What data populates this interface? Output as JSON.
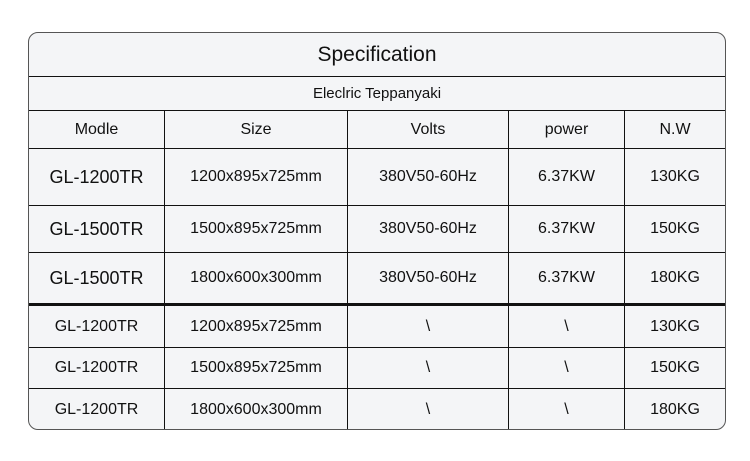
{
  "title": "Specification",
  "subtitle": "Eleclric Teppanyaki",
  "headers": [
    "Modle",
    "Size",
    "Volts",
    "power",
    "N.W"
  ],
  "rows": [
    [
      "GL-1200TR",
      "1200x895x725mm",
      "380V50-60Hz",
      "6.37KW",
      "130KG"
    ],
    [
      "GL-1500TR",
      "1500x895x725mm",
      "380V50-60Hz",
      "6.37KW",
      "150KG"
    ],
    [
      "GL-1500TR",
      "1800x600x300mm",
      "380V50-60Hz",
      "6.37KW",
      "180KG"
    ],
    [
      "GL-1200TR",
      "1200x895x725mm",
      "\\",
      "\\",
      "130KG"
    ],
    [
      "GL-1200TR",
      "1500x895x725mm",
      "\\",
      "\\",
      "150KG"
    ],
    [
      "GL-1200TR",
      "1800x600x300mm",
      "\\",
      "\\",
      "180KG"
    ]
  ]
}
